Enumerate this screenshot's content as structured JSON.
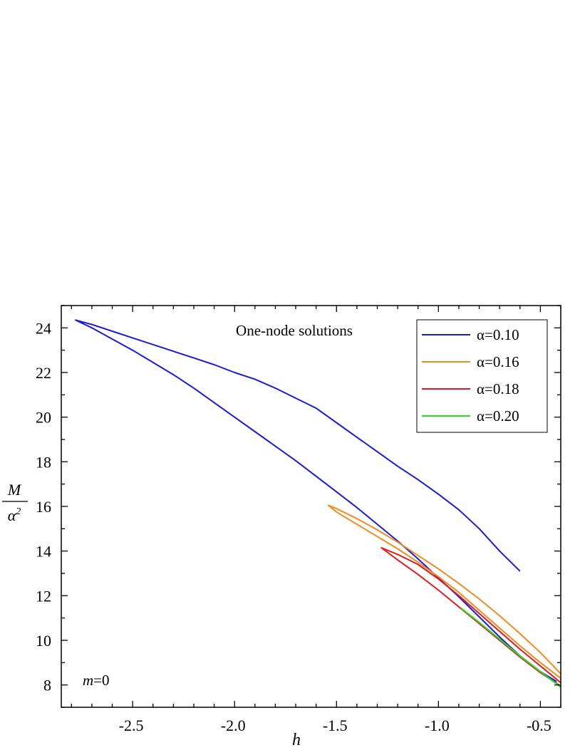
{
  "chart_data": {
    "type": "line",
    "title": "",
    "annotations": {
      "main": "One-node solutions",
      "param_var": "m",
      "param_val": "=0"
    },
    "xlabel": "h",
    "ylabel": {
      "numerator": "M",
      "denominator_base": "α",
      "denominator_exp": "2"
    },
    "xlim": [
      -2.85,
      -0.4
    ],
    "ylim": [
      7,
      25
    ],
    "x_ticks": [
      -2.5,
      -2.0,
      -1.5,
      -1.0,
      -0.5
    ],
    "x_tick_labels": [
      "-2.5",
      "-2.0",
      "-1.5",
      "-1.0",
      "-0.5"
    ],
    "y_ticks": [
      8,
      10,
      12,
      14,
      16,
      18,
      20,
      22,
      24
    ],
    "y_tick_labels": [
      "8",
      "10",
      "12",
      "14",
      "16",
      "18",
      "20",
      "22",
      "24"
    ],
    "grid": false,
    "legend_position": "top-right",
    "series": [
      {
        "name": "α=0.10",
        "color": "#1a1adf",
        "points": [
          [
            -0.6,
            13.1
          ],
          [
            -0.7,
            14.0
          ],
          [
            -0.8,
            15.0
          ],
          [
            -0.9,
            15.85
          ],
          [
            -1.0,
            16.55
          ],
          [
            -1.1,
            17.2
          ],
          [
            -1.2,
            17.8
          ],
          [
            -1.3,
            18.45
          ],
          [
            -1.4,
            19.1
          ],
          [
            -1.5,
            19.75
          ],
          [
            -1.6,
            20.4
          ],
          [
            -1.7,
            20.85
          ],
          [
            -1.8,
            21.3
          ],
          [
            -1.9,
            21.7
          ],
          [
            -2.0,
            22.0
          ],
          [
            -2.1,
            22.35
          ],
          [
            -2.2,
            22.65
          ],
          [
            -2.3,
            22.95
          ],
          [
            -2.4,
            23.25
          ],
          [
            -2.5,
            23.55
          ],
          [
            -2.6,
            23.85
          ],
          [
            -2.7,
            24.15
          ],
          [
            -2.78,
            24.35
          ],
          [
            -2.7,
            24.0
          ],
          [
            -2.6,
            23.5
          ],
          [
            -2.5,
            23.0
          ],
          [
            -2.4,
            22.45
          ],
          [
            -2.3,
            21.9
          ],
          [
            -2.2,
            21.3
          ],
          [
            -2.1,
            20.65
          ],
          [
            -2.0,
            20.0
          ],
          [
            -1.9,
            19.35
          ],
          [
            -1.8,
            18.7
          ],
          [
            -1.7,
            18.05
          ],
          [
            -1.6,
            17.35
          ],
          [
            -1.5,
            16.65
          ],
          [
            -1.4,
            15.95
          ],
          [
            -1.3,
            15.2
          ],
          [
            -1.2,
            14.45
          ],
          [
            -1.1,
            13.65
          ],
          [
            -1.0,
            12.8
          ],
          [
            -0.9,
            11.95
          ],
          [
            -0.8,
            11.05
          ],
          [
            -0.7,
            10.15
          ],
          [
            -0.6,
            9.3
          ],
          [
            -0.5,
            8.6
          ],
          [
            -0.42,
            8.15
          ]
        ]
      },
      {
        "name": "α=0.16",
        "color": "#f08c1e",
        "points": [
          [
            -0.4,
            8.5
          ],
          [
            -0.5,
            9.45
          ],
          [
            -0.6,
            10.3
          ],
          [
            -0.7,
            11.1
          ],
          [
            -0.8,
            11.85
          ],
          [
            -0.9,
            12.55
          ],
          [
            -1.0,
            13.2
          ],
          [
            -1.1,
            13.8
          ],
          [
            -1.2,
            14.4
          ],
          [
            -1.3,
            14.95
          ],
          [
            -1.4,
            15.45
          ],
          [
            -1.5,
            15.9
          ],
          [
            -1.54,
            16.05
          ],
          [
            -1.5,
            15.75
          ],
          [
            -1.4,
            15.2
          ],
          [
            -1.3,
            14.65
          ],
          [
            -1.2,
            14.1
          ],
          [
            -1.1,
            13.5
          ],
          [
            -1.0,
            12.85
          ],
          [
            -0.9,
            12.15
          ],
          [
            -0.8,
            11.35
          ],
          [
            -0.7,
            10.55
          ],
          [
            -0.6,
            9.75
          ],
          [
            -0.5,
            9.0
          ],
          [
            -0.4,
            8.3
          ]
        ]
      },
      {
        "name": "α=0.18",
        "color": "#e41a1a",
        "points": [
          [
            -0.4,
            8.1
          ],
          [
            -0.5,
            8.85
          ],
          [
            -0.6,
            9.6
          ],
          [
            -0.7,
            10.4
          ],
          [
            -0.8,
            11.2
          ],
          [
            -0.9,
            12.0
          ],
          [
            -1.0,
            12.75
          ],
          [
            -1.1,
            13.4
          ],
          [
            -1.2,
            13.85
          ],
          [
            -1.28,
            14.15
          ],
          [
            -1.2,
            13.6
          ],
          [
            -1.1,
            12.95
          ],
          [
            -1.0,
            12.25
          ],
          [
            -0.9,
            11.5
          ],
          [
            -0.8,
            10.75
          ],
          [
            -0.7,
            10.0
          ],
          [
            -0.6,
            9.25
          ],
          [
            -0.5,
            8.55
          ],
          [
            -0.4,
            7.95
          ]
        ]
      },
      {
        "name": "α=0.20",
        "color": "#22e022",
        "points": [
          [
            -0.89,
            11.45
          ],
          [
            -0.8,
            10.8
          ],
          [
            -0.7,
            10.05
          ],
          [
            -0.6,
            9.3
          ],
          [
            -0.5,
            8.6
          ],
          [
            -0.4,
            7.9
          ]
        ]
      }
    ]
  }
}
